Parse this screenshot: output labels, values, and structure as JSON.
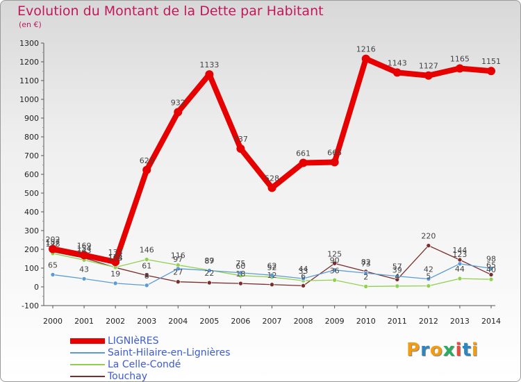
{
  "title": "Evolution du Montant de la Dette par Habitant",
  "subtitle": "(en €)",
  "logo": {
    "text": "Proxiti",
    "colors": [
      "#f39c12",
      "#2e86c1",
      "#f39c12",
      "#27ae60",
      "#e74c3c",
      "#2e86c1",
      "#f39c12"
    ]
  },
  "chart_data": {
    "type": "line",
    "x": [
      "2000",
      "2001",
      "2002",
      "2003",
      "2004",
      "2005",
      "2006",
      "2007",
      "2008",
      "2009",
      "2010",
      "2011",
      "2012",
      "2013",
      "2014"
    ],
    "ylim": [
      -100,
      1300
    ],
    "yticks": [
      -100,
      0,
      100,
      200,
      300,
      400,
      500,
      600,
      700,
      800,
      900,
      1000,
      1100,
      1200,
      1300
    ],
    "grid": false,
    "legend_position": "bottom-left",
    "series": [
      {
        "name": "LIGNIèRES",
        "color": "#e60000",
        "values": [
          202,
          169,
          133,
          623,
          932,
          1133,
          737,
          528,
          661,
          665,
          1216,
          1143,
          1127,
          1165,
          1151
        ]
      },
      {
        "name": "Saint-Hilaire-en-Lignières",
        "color": "#5b9bd5",
        "values": [
          65,
          43,
          19,
          8,
          97,
          87,
          75,
          62,
          44,
          90,
          73,
          57,
          42,
          123,
          98
        ]
      },
      {
        "name": "La Celle-Condé",
        "color": "#8fd14f",
        "values": [
          178,
          143,
          104,
          146,
          116,
          89,
          60,
          52,
          33,
          36,
          2,
          4,
          5,
          44,
          40
        ]
      },
      {
        "name": "Touchay",
        "color": "#7b2d2d",
        "values": [
          187,
          154,
          103,
          61,
          27,
          22,
          18,
          12,
          6,
          125,
          82,
          39,
          220,
          144,
          65
        ]
      }
    ]
  }
}
